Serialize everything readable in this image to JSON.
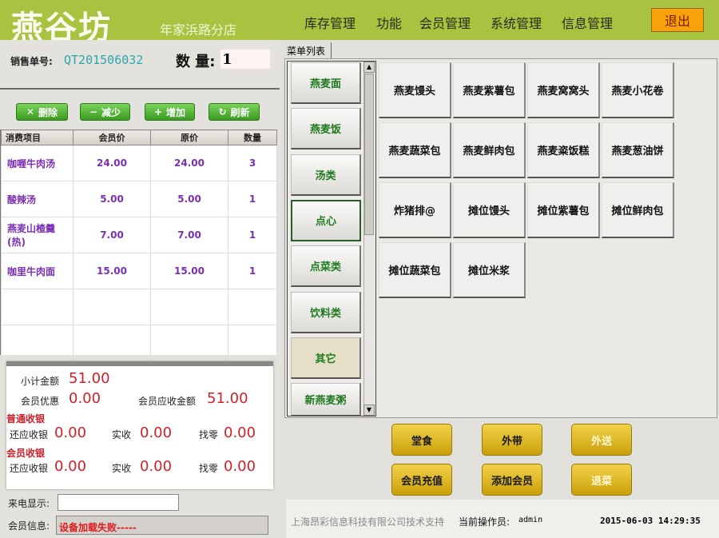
{
  "header": {
    "logo": "燕谷坊",
    "branch": "年家浜路分店",
    "nav": [
      "库存管理",
      "功能",
      "会员管理",
      "系统管理",
      "信息管理"
    ],
    "logout": "退出"
  },
  "order": {
    "no_label": "销售单号:",
    "no": "QT201506032",
    "qty_label": "数 量:",
    "qty": "1"
  },
  "actions": [
    {
      "icon": "close-icon",
      "glyph": "✕",
      "label": "删除"
    },
    {
      "icon": "minus-icon",
      "glyph": "−",
      "label": "减少"
    },
    {
      "icon": "plus-icon",
      "glyph": "+",
      "label": "增加"
    },
    {
      "icon": "refresh-icon",
      "glyph": "↻",
      "label": "刷新"
    }
  ],
  "table": {
    "headers": [
      "消费项目",
      "会员价",
      "原价",
      "数量"
    ],
    "rows": [
      [
        "咖喱牛肉汤",
        "24.00",
        "24.00",
        "3"
      ],
      [
        "酸辣汤",
        "5.00",
        "5.00",
        "1"
      ],
      [
        "燕麦山楂羹(热)",
        "7.00",
        "7.00",
        "1"
      ],
      [
        "咖里牛肉面",
        "15.00",
        "15.00",
        "1"
      ]
    ]
  },
  "summary": {
    "subtotal_label": "小计金额",
    "subtotal": "51.00",
    "discount_label": "会员优惠",
    "discount": "0.00",
    "member_due_label": "会员应收金额",
    "member_due": "51.00",
    "normal_title": "普通收银",
    "member_title": "会员收银",
    "due_label": "还应收银",
    "paid_label": "实收",
    "change_label": "找零",
    "normal": {
      "due": "0.00",
      "paid": "0.00",
      "change": "0.00"
    },
    "member": {
      "due": "0.00",
      "paid": "0.00",
      "change": "0.00"
    }
  },
  "caller": {
    "label": "来电显示:",
    "value": ""
  },
  "member_info": {
    "label": "会员信息:",
    "value": "设备加载失败-----"
  },
  "menu": {
    "tab": "菜单列表",
    "categories": [
      "燕麦面",
      "燕麦饭",
      "汤类",
      "点心",
      "点菜类",
      "饮料类",
      "其它",
      "新燕麦粥"
    ],
    "selected": "点心",
    "dishes": [
      "燕麦馒头",
      "燕麦紫薯包",
      "燕麦窝窝头",
      "燕麦小花卷",
      "燕麦蔬菜包",
      "燕麦鲜肉包",
      "燕麦粢饭糕",
      "燕麦葱油饼",
      "炸猪排@",
      "摊位馒头",
      "摊位紫薯包",
      "摊位鲜肉包",
      "摊位蔬菜包",
      "摊位米浆"
    ]
  },
  "order_buttons": [
    "堂食",
    "外带",
    "外送",
    "会员充值",
    "添加会员",
    "退菜"
  ],
  "footer": {
    "support": "上海昂彩信息科技有限公司技术支持",
    "operator_label": "当前操作员:",
    "operator": "admin",
    "datetime": "2015-06-03 14:29:35"
  }
}
